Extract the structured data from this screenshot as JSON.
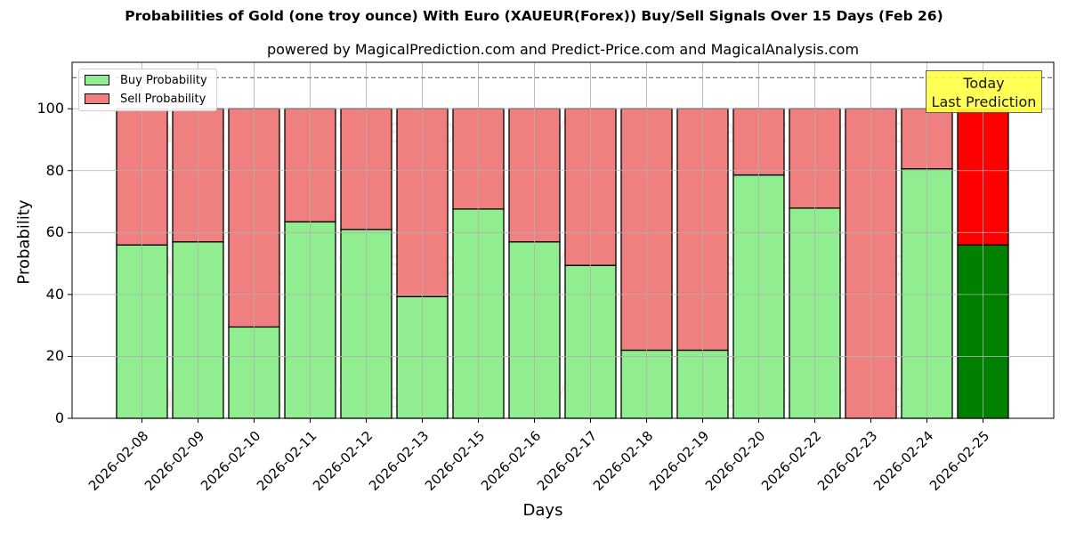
{
  "header": {
    "title": "Probabilities of Gold (one troy ounce) With Euro (XAUEUR(Forex)) Buy/Sell Signals Over 15 Days (Feb 26)",
    "subtitle": "powered by MagicalPrediction.com and Predict-Price.com and MagicalAnalysis.com"
  },
  "legend": {
    "items": [
      {
        "label": "Buy Probability",
        "color": "#90ee90"
      },
      {
        "label": "Sell Probability",
        "color": "#f08080"
      }
    ]
  },
  "annotation": {
    "line1": "Today",
    "line2": "Last Prediction",
    "color": "#ffff44"
  },
  "watermarks": [
    "MagicalAnalysis.com",
    "MagicalPrediction.com"
  ],
  "colors": {
    "buy": "#90ee90",
    "sell": "#f08080",
    "today_buy": "#008000",
    "today_sell": "#ff0000"
  },
  "chart_data": {
    "type": "bar",
    "stacked": true,
    "title": "Probabilities of Gold (one troy ounce) With Euro (XAUEUR(Forex)) Buy/Sell Signals Over 15 Days (Feb 26)",
    "subtitle": "powered by MagicalPrediction.com and Predict-Price.com and MagicalAnalysis.com",
    "xlabel": "Days",
    "ylabel": "Probability",
    "ylim": [
      0,
      115
    ],
    "yticks": [
      0,
      20,
      40,
      60,
      80,
      100
    ],
    "grid": true,
    "legend_position": "upper left",
    "reference_line": {
      "y": 110,
      "style": "dashed"
    },
    "categories": [
      "2026-02-08",
      "2026-02-09",
      "2026-02-10",
      "2026-02-11",
      "2026-02-12",
      "2026-02-13",
      "2026-02-15",
      "2026-02-16",
      "2026-02-17",
      "2026-02-18",
      "2026-02-19",
      "2026-02-20",
      "2026-02-22",
      "2026-02-23",
      "2026-02-24",
      "2026-02-25"
    ],
    "series": [
      {
        "name": "Buy Probability",
        "values": [
          56.0,
          57.0,
          29.5,
          63.5,
          61.0,
          39.3,
          67.6,
          57.0,
          49.4,
          22.0,
          22.0,
          78.6,
          67.9,
          0.0,
          80.6,
          56.0
        ]
      },
      {
        "name": "Sell Probability",
        "values": [
          44.0,
          43.0,
          70.5,
          36.5,
          39.0,
          60.7,
          32.4,
          43.0,
          50.6,
          78.0,
          78.0,
          21.4,
          32.1,
          100.0,
          19.4,
          44.0
        ]
      }
    ],
    "highlight_last": true
  }
}
